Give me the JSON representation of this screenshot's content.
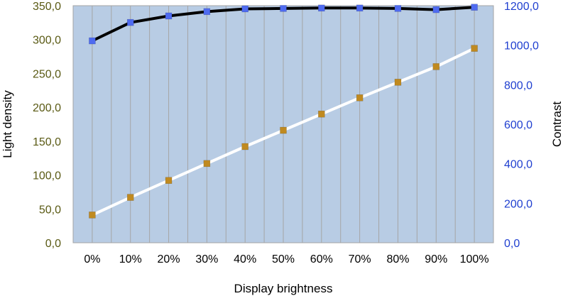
{
  "chart_data": {
    "type": "line",
    "xlabel": "Display brightness",
    "ylabel_left": "Light density",
    "ylabel_right": "Contrast",
    "categories": [
      "0%",
      "10%",
      "20%",
      "30%",
      "40%",
      "50%",
      "60%",
      "70%",
      "80%",
      "90%",
      "100%"
    ],
    "y_left": {
      "min": 0,
      "max": 350,
      "step": 50,
      "ticks": [
        "0,0",
        "50,0",
        "100,0",
        "150,0",
        "200,0",
        "250,0",
        "300,0",
        "350,0"
      ]
    },
    "y_right": {
      "min": 0,
      "max": 1200,
      "step": 200,
      "ticks": [
        "0,0",
        "200,0",
        "400,0",
        "600,0",
        "800,0",
        "1000,0",
        "1200,0"
      ]
    },
    "grid": "vertical",
    "series": [
      {
        "axis": "right",
        "line_color": "#000000",
        "marker_color": "#4f6bf0",
        "values": [
          1022,
          1115,
          1148,
          1170,
          1184,
          1186,
          1188,
          1188,
          1186,
          1180,
          1192
        ]
      },
      {
        "axis": "left",
        "line_color": "#ffffff",
        "marker_color": "#c08a20",
        "values": [
          41,
          67,
          92,
          117,
          142,
          166,
          190,
          214,
          237,
          260,
          287
        ]
      }
    ],
    "colors": {
      "plot_bg": "#b8cce4",
      "grid": "#a5a5a5",
      "left_ticks": "#5a5a14",
      "right_ticks": "#1f3fd0"
    }
  }
}
